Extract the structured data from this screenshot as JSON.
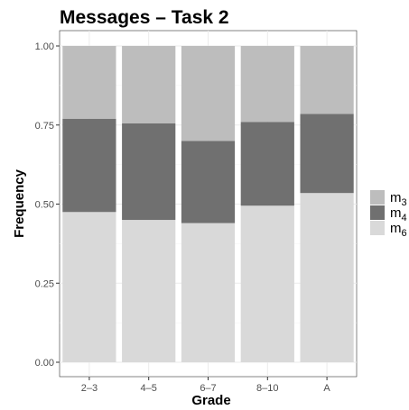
{
  "chart_data": {
    "type": "bar",
    "stacked": true,
    "title": "Messages – Task 2",
    "xlabel": "Grade",
    "ylabel": "Frequency",
    "categories": [
      "2–3",
      "4–5",
      "6–7",
      "8–10",
      "A"
    ],
    "yticks": [
      "0.00",
      "0.25",
      "0.50",
      "0.75",
      "1.00"
    ],
    "ylim": [
      0,
      1
    ],
    "grid": true,
    "legend_position": "right",
    "series": [
      {
        "name": "m6",
        "color": "#d9d9d9",
        "values": [
          0.475,
          0.45,
          0.44,
          0.495,
          0.535
        ]
      },
      {
        "name": "m4",
        "color": "#707070",
        "values": [
          0.295,
          0.305,
          0.26,
          0.265,
          0.25
        ]
      },
      {
        "name": "m3",
        "color": "#bdbdbd",
        "values": [
          0.23,
          0.245,
          0.3,
          0.24,
          0.215
        ]
      }
    ],
    "legend_order": [
      2,
      1,
      0
    ]
  }
}
